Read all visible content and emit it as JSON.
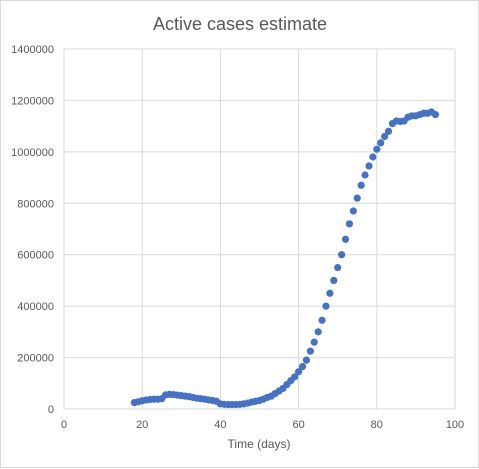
{
  "chart_data": {
    "type": "scatter",
    "title": "Active cases estimate",
    "xlabel": "Time (days)",
    "ylabel": "",
    "xlim": [
      0,
      100
    ],
    "ylim": [
      0,
      1400000
    ],
    "x_ticks": [
      0,
      20,
      40,
      60,
      80,
      100
    ],
    "y_ticks": [
      0,
      200000,
      400000,
      600000,
      800000,
      1000000,
      1200000,
      1400000
    ],
    "grid": true,
    "color": "#4472c4",
    "series": [
      {
        "x": [
          18,
          19,
          20,
          21,
          22,
          23,
          24,
          25,
          26,
          27,
          28,
          29,
          30,
          31,
          32,
          33,
          34,
          35,
          36,
          37,
          38,
          39,
          40,
          41,
          42,
          43,
          44,
          45,
          46,
          47,
          48,
          49,
          50,
          51,
          52,
          53,
          54,
          55,
          56,
          57,
          58,
          59,
          60,
          61,
          62,
          63,
          64,
          65,
          66,
          67,
          68,
          69,
          70,
          71,
          72,
          73,
          74,
          75,
          76,
          77,
          78,
          79,
          80,
          81,
          82,
          83,
          84,
          85,
          86,
          87,
          88,
          89,
          90,
          91,
          92,
          93,
          94,
          95
        ],
        "y": [
          25000,
          28000,
          32000,
          35000,
          37000,
          38000,
          38000,
          40000,
          55000,
          57000,
          56000,
          54000,
          52000,
          50000,
          48000,
          45000,
          42000,
          40000,
          38000,
          35000,
          33000,
          30000,
          20000,
          18000,
          17000,
          17000,
          17000,
          18000,
          20000,
          23000,
          27000,
          30000,
          33000,
          38000,
          45000,
          50000,
          60000,
          70000,
          80000,
          95000,
          110000,
          125000,
          145000,
          165000,
          190000,
          225000,
          260000,
          300000,
          345000,
          400000,
          450000,
          500000,
          550000,
          600000,
          660000,
          720000,
          770000,
          820000,
          870000,
          910000,
          945000,
          980000,
          1010000,
          1035000,
          1060000,
          1080000,
          1110000,
          1120000,
          1118000,
          1120000,
          1135000,
          1140000,
          1140000,
          1145000,
          1150000,
          1150000,
          1155000,
          1145000
        ]
      }
    ]
  }
}
